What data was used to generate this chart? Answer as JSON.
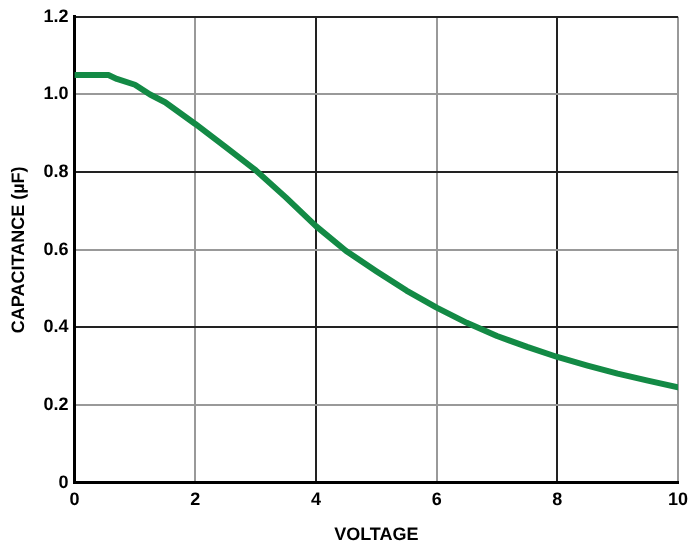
{
  "chart_data": {
    "type": "line",
    "xlabel": "VOLTAGE",
    "ylabel": "CAPACITANCE (µF)",
    "x": [
      0,
      0.3,
      0.56,
      0.7,
      1,
      1.25,
      1.5,
      2,
      2.5,
      3,
      3.5,
      4,
      4.5,
      5,
      5.5,
      6,
      6.5,
      7,
      7.5,
      8,
      8.5,
      9,
      9.5,
      10
    ],
    "series": [
      {
        "color": "#138a45",
        "values": [
          1.05,
          1.05,
          1.05,
          1.04,
          1.025,
          1.0,
          0.98,
          0.924,
          0.865,
          0.805,
          0.735,
          0.661,
          0.597,
          0.545,
          0.495,
          0.451,
          0.412,
          0.378,
          0.35,
          0.324,
          0.302,
          0.281,
          0.263,
          0.246
        ]
      }
    ],
    "xlim": [
      0,
      10
    ],
    "xticks": [
      0,
      2,
      4,
      6,
      8,
      10
    ],
    "ylim": [
      0,
      1.2
    ],
    "yticks": [
      0,
      0.2,
      0.4,
      0.6,
      0.8,
      {
        "value": 1,
        "label": "1.0"
      },
      1.2
    ],
    "grid": true,
    "legend": false,
    "marker": "none",
    "line_style": "solid"
  }
}
